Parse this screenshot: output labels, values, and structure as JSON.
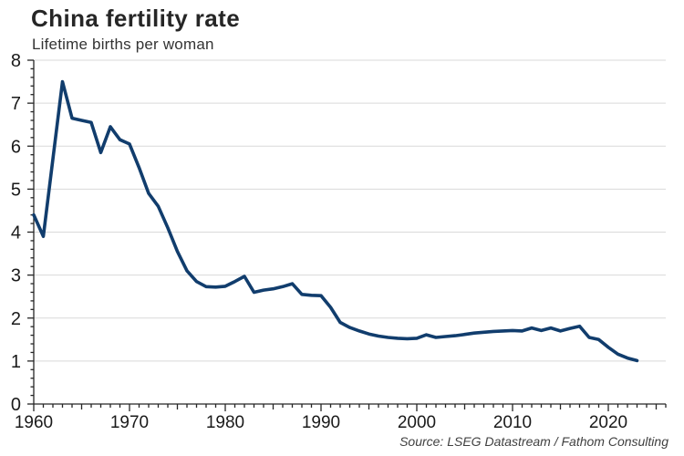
{
  "header": {
    "title": "China fertility rate",
    "subtitle": "Lifetime births per woman"
  },
  "footer": {
    "source": "Source: LSEG Datastream / Fathom Consulting"
  },
  "colors": {
    "line": "#113d6d",
    "grid": "#d9d9d9",
    "axis": "#262626",
    "tick_label": "#1a1a1a"
  },
  "chart_data": {
    "type": "line",
    "title": "China fertility rate",
    "subtitle": "Lifetime births per woman",
    "source": "Source: LSEG Datastream / Fathom Consulting",
    "xlabel": "",
    "ylabel": "Lifetime births per woman",
    "xlim": [
      1960,
      2026
    ],
    "ylim": [
      0,
      8
    ],
    "x_ticks": [
      1960,
      1970,
      1980,
      1990,
      2000,
      2010,
      2020
    ],
    "y_ticks": [
      0,
      1,
      2,
      3,
      4,
      5,
      6,
      7,
      8
    ],
    "grid": "horizontal-only",
    "legend": "none",
    "series": [
      {
        "name": "China fertility rate",
        "x": [
          1960,
          1961,
          1962,
          1963,
          1964,
          1965,
          1966,
          1967,
          1968,
          1969,
          1970,
          1971,
          1972,
          1973,
          1974,
          1975,
          1976,
          1977,
          1978,
          1979,
          1980,
          1981,
          1982,
          1983,
          1984,
          1985,
          1986,
          1987,
          1988,
          1989,
          1990,
          1991,
          1992,
          1993,
          1994,
          1995,
          1996,
          1997,
          1998,
          1999,
          2000,
          2001,
          2002,
          2003,
          2004,
          2005,
          2006,
          2007,
          2008,
          2009,
          2010,
          2011,
          2012,
          2013,
          2014,
          2015,
          2016,
          2017,
          2018,
          2019,
          2020,
          2021,
          2022,
          2023
        ],
        "y": [
          4.4,
          3.9,
          5.7,
          7.5,
          6.65,
          6.6,
          6.55,
          5.85,
          6.45,
          6.15,
          6.05,
          5.5,
          4.9,
          4.6,
          4.1,
          3.55,
          3.1,
          2.85,
          2.73,
          2.72,
          2.74,
          2.85,
          2.97,
          2.6,
          2.65,
          2.68,
          2.73,
          2.8,
          2.55,
          2.53,
          2.52,
          2.25,
          1.9,
          1.78,
          1.7,
          1.63,
          1.58,
          1.55,
          1.53,
          1.52,
          1.53,
          1.61,
          1.55,
          1.57,
          1.59,
          1.62,
          1.65,
          1.67,
          1.69,
          1.7,
          1.71,
          1.7,
          1.77,
          1.71,
          1.77,
          1.7,
          1.76,
          1.81,
          1.55,
          1.5,
          1.32,
          1.16,
          1.07,
          1.01
        ]
      }
    ]
  }
}
